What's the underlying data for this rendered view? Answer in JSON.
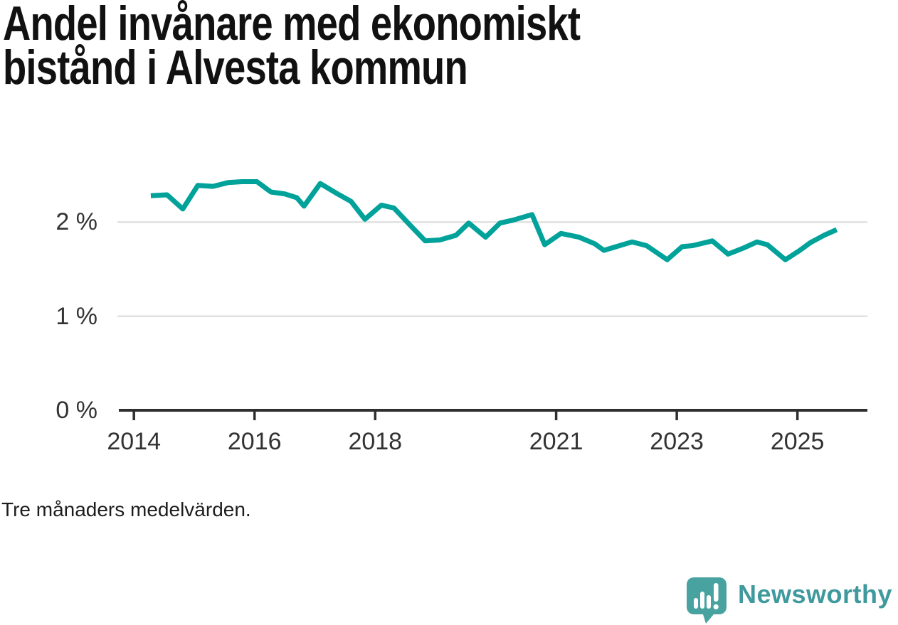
{
  "header": {
    "title_full": "Andel invånare med ekonomiskt bistånd i Alvesta kommun",
    "title_lines": [
      "Andel invånare med ekonomiskt",
      "bistånd i Alvesta kommun"
    ]
  },
  "footnote": {
    "text": "Tre månaders medelvärden."
  },
  "branding": {
    "wordmark": "Newsworthy",
    "icon": "newsworthy-logo-icon",
    "wordmark_color": "#3f999d",
    "icon_color": "#48a3a0"
  },
  "colors": {
    "line": "#00a29a",
    "axis": "#2f2f2f",
    "grid": "#e1e1e1",
    "tick_label": "#333333",
    "background": "#ffffff"
  },
  "chart_data": {
    "type": "line",
    "title": "Andel invånare med ekonomiskt bistånd i Alvesta kommun",
    "subtitle": "Tre månaders medelvärden.",
    "unit": "%",
    "xlabel": "",
    "ylabel": "",
    "grid": "horizontal",
    "legend": "none",
    "xlim": [
      2013.75,
      2026.16
    ],
    "ylim": [
      0,
      2.6
    ],
    "x_ticks": [
      {
        "label": "2014",
        "value": 2014
      },
      {
        "label": "2016",
        "value": 2016
      },
      {
        "label": "2018",
        "value": 2018
      },
      {
        "label": "2021",
        "value": 2021
      },
      {
        "label": "2023",
        "value": 2023
      },
      {
        "label": "2025",
        "value": 2025
      }
    ],
    "y_ticks": [
      {
        "label": "0 %",
        "value": 0
      },
      {
        "label": "1 %",
        "value": 1
      },
      {
        "label": "2 %",
        "value": 2
      }
    ],
    "series": [
      {
        "name": "Andel invånare med ekonomiskt bistånd",
        "color": "#00a29a",
        "x": [
          2014.28,
          2014.55,
          2014.81,
          2015.06,
          2015.31,
          2015.56,
          2015.79,
          2016.04,
          2016.27,
          2016.5,
          2016.7,
          2016.82,
          2017.09,
          2017.35,
          2017.6,
          2017.83,
          2018.1,
          2018.31,
          2018.59,
          2018.83,
          2019.07,
          2019.34,
          2019.55,
          2019.83,
          2020.07,
          2020.28,
          2020.6,
          2020.81,
          2021.08,
          2021.38,
          2021.64,
          2021.79,
          2022.05,
          2022.26,
          2022.5,
          2022.84,
          2023.09,
          2023.26,
          2023.59,
          2023.85,
          2024.09,
          2024.33,
          2024.5,
          2024.8,
          2025.04,
          2025.21,
          2025.44,
          2025.65
        ],
        "y": [
          2.28,
          2.29,
          2.14,
          2.39,
          2.38,
          2.42,
          2.43,
          2.43,
          2.32,
          2.3,
          2.26,
          2.17,
          2.41,
          2.31,
          2.22,
          2.03,
          2.18,
          2.15,
          1.96,
          1.8,
          1.81,
          1.86,
          1.99,
          1.84,
          1.99,
          2.02,
          2.08,
          1.76,
          1.88,
          1.84,
          1.77,
          1.7,
          1.75,
          1.79,
          1.75,
          1.6,
          1.74,
          1.75,
          1.8,
          1.66,
          1.72,
          1.79,
          1.76,
          1.6,
          1.7,
          1.78,
          1.86,
          1.92
        ]
      }
    ]
  }
}
